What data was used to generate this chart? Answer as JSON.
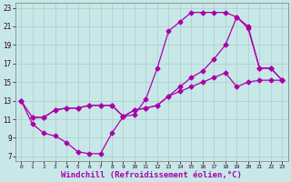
{
  "xlabel": "Windchill (Refroidissement éolien,°C)",
  "bg_color": "#c8e8e8",
  "grid_color": "#aacccc",
  "line_color": "#aa00aa",
  "xlim": [
    -0.5,
    23.5
  ],
  "ylim": [
    6.5,
    23.5
  ],
  "xticks": [
    0,
    1,
    2,
    3,
    4,
    5,
    6,
    7,
    8,
    9,
    10,
    11,
    12,
    13,
    14,
    15,
    16,
    17,
    18,
    19,
    20,
    21,
    22,
    23
  ],
  "yticks": [
    7,
    9,
    11,
    13,
    15,
    17,
    19,
    21,
    23
  ],
  "line1_x": [
    0,
    1,
    2,
    3,
    4,
    5,
    6,
    7,
    8,
    9,
    10,
    11,
    12,
    13,
    14,
    15,
    16,
    17,
    18,
    19,
    20,
    21,
    22,
    23
  ],
  "line1_y": [
    13,
    10.5,
    9.5,
    9.2,
    8.5,
    7.5,
    7.3,
    7.3,
    9.5,
    11.3,
    11.5,
    13.2,
    16.5,
    20.5,
    21.5,
    22.5,
    22.5,
    22.5,
    22.5,
    22.0,
    20.8,
    16.5,
    16.5,
    15.2
  ],
  "line2_x": [
    0,
    1,
    2,
    3,
    4,
    5,
    6,
    7,
    8,
    9,
    10,
    11,
    12,
    13,
    14,
    15,
    16,
    17,
    18,
    19,
    20,
    21,
    22,
    23
  ],
  "line2_y": [
    13,
    11.2,
    11.2,
    12.0,
    12.2,
    12.2,
    12.5,
    12.5,
    12.5,
    11.3,
    12.0,
    12.2,
    12.5,
    13.5,
    14.5,
    15.5,
    16.2,
    17.5,
    19.0,
    22.0,
    21.0,
    16.5,
    16.5,
    15.2
  ],
  "line3_x": [
    1,
    2,
    3,
    4,
    5,
    6,
    7,
    8,
    9,
    10,
    11,
    12,
    13,
    14,
    15,
    16,
    17,
    18,
    19,
    20,
    21,
    22,
    23
  ],
  "line3_y": [
    11.2,
    11.2,
    12.0,
    12.2,
    12.2,
    12.5,
    12.5,
    12.5,
    11.3,
    12.0,
    12.2,
    12.5,
    13.5,
    14.0,
    14.5,
    15.0,
    15.5,
    16.0,
    14.5,
    15.0,
    15.2,
    15.2,
    15.2
  ],
  "marker": "D",
  "markersize": 2.5,
  "linewidth": 0.9
}
